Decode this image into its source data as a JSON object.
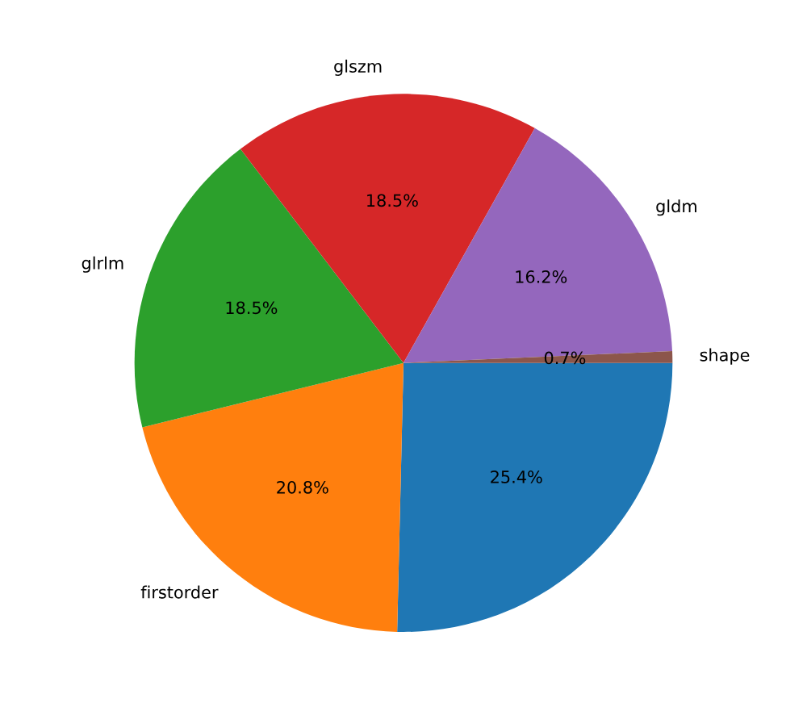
{
  "chart_data": {
    "type": "pie",
    "categories": [
      null,
      "firstorder",
      "glrlm",
      "glszm",
      "gldm",
      "shape"
    ],
    "values": [
      25.4,
      20.8,
      18.5,
      18.5,
      16.2,
      0.7
    ],
    "colors": [
      "#1f77b4",
      "#ff7f0e",
      "#2ca02c",
      "#d62728",
      "#9467bd",
      "#8c564b"
    ],
    "value_labels": [
      "25.4%",
      "20.8%",
      "18.5%",
      "18.5%",
      "16.2%",
      "0.7%"
    ]
  }
}
